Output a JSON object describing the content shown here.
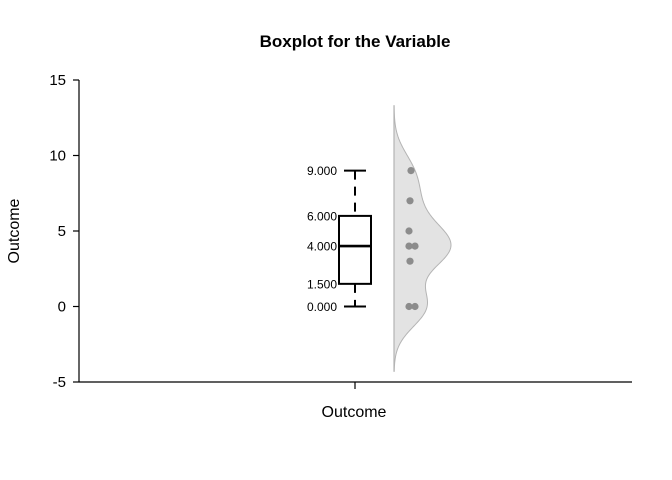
{
  "chart_data": {
    "type": "boxplot",
    "title": "Boxplot for the Variable",
    "xlabel": "Outcome",
    "ylabel": "Outcome",
    "categories": [
      "Outcome"
    ],
    "ylim": [
      -5,
      15
    ],
    "yticks": [
      "-5",
      "0",
      "5",
      "10",
      "15"
    ],
    "ytick_values": [
      -5,
      0,
      5,
      10,
      15
    ],
    "box": {
      "min": 0,
      "q1": 1.5,
      "median": 4,
      "q3": 6,
      "max": 9
    },
    "stat_labels": {
      "min": "0.000",
      "q1": "1.500",
      "median": "4.000",
      "q3": "6.000",
      "max": "9.000"
    },
    "points": [
      9,
      7,
      5,
      4,
      4,
      3,
      0,
      0
    ],
    "violin_range": [
      -4.3,
      13.3
    ],
    "grid": false,
    "colors": {
      "violin_fill": "#e3e3e3",
      "violin_edge": "#b4b4b4",
      "points": "#8c8c8c"
    }
  }
}
